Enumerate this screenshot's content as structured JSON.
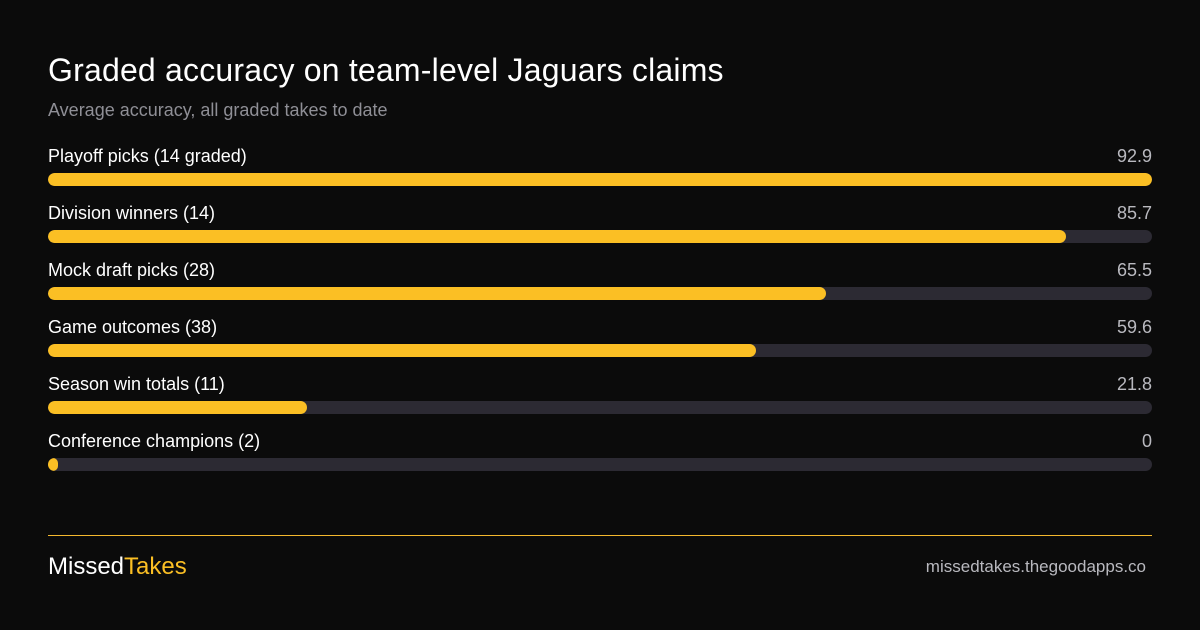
{
  "colors": {
    "background": "#0b0b0b",
    "bar_fill": "#fbbf24",
    "bar_track": "#2c2a33",
    "accent": "#fbbf24",
    "muted_text": "#8f8f96"
  },
  "chart_data": {
    "type": "bar",
    "orientation": "horizontal",
    "title": "Graded accuracy on team-level Jaguars claims",
    "subtitle": "Average accuracy, all graded takes to date",
    "categories": [
      "Playoff picks (14 graded)",
      "Division winners (14)",
      "Mock draft picks (28)",
      "Game outcomes (38)",
      "Season win totals (11)",
      "Conference champions (2)"
    ],
    "value_labels": [
      "92.9",
      "85.7",
      "65.5",
      "59.6",
      "21.8",
      "0"
    ],
    "values": [
      92.9,
      85.7,
      65.5,
      59.6,
      21.8,
      0
    ],
    "xlim": [
      0,
      92.9
    ],
    "grid": false,
    "legend": "none"
  },
  "footer": {
    "brand_part1": "Missed",
    "brand_part2": "Takes",
    "site": "missedtakes.thegoodapps.co"
  }
}
